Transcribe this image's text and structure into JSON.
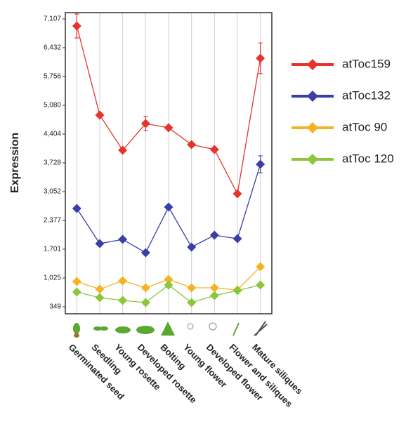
{
  "chart_data": {
    "type": "line",
    "y_label": "Expression",
    "categories": [
      "Germinated seed",
      "Seedling",
      "Young rosette",
      "Developed rosette",
      "Bolting",
      "Young flower",
      "Developed flower",
      "Flower and siliques",
      "Mature siliques"
    ],
    "series": [
      {
        "name": "atToc159",
        "color": "#e8322b",
        "values": [
          6942,
          4849,
          4025,
          4650,
          4552,
          4156,
          4041,
          3002,
          6183
        ],
        "errors": [
          280,
          null,
          null,
          165,
          null,
          null,
          null,
          null,
          360
        ]
      },
      {
        "name": "atToc132",
        "color": "#3a3fa8",
        "values": [
          2656,
          1832,
          1931,
          1618,
          2689,
          1750,
          2030,
          1947,
          3694
        ],
        "errors": [
          null,
          null,
          null,
          null,
          null,
          null,
          null,
          null,
          200
        ]
      },
      {
        "name": "atToc 90",
        "color": "#f5b324",
        "values": [
          942,
          761,
          959,
          794,
          992,
          794,
          794,
          745,
          1288
        ]
      },
      {
        "name": "atToc 120",
        "color": "#8cc63f",
        "values": [
          695,
          563,
          497,
          448,
          860,
          448,
          613,
          728,
          860
        ]
      }
    ],
    "ylim": [
      184,
      7255
    ],
    "yticks": [
      349,
      {
        "value": 1025,
        "label": "1,025"
      },
      {
        "value": 1701,
        "label": "1,701"
      },
      {
        "value": 2377,
        "label": "2,377"
      },
      {
        "value": 3052,
        "label": "3,052"
      },
      {
        "value": 3728,
        "label": "3,728"
      },
      {
        "value": 4404,
        "label": "4,404"
      },
      {
        "value": 5080,
        "label": "5,080"
      },
      {
        "value": 5756,
        "label": "5,756"
      },
      {
        "value": 6432,
        "label": "6,432"
      },
      {
        "value": 7107,
        "label": "7,107"
      }
    ],
    "grid": true,
    "legend": "right"
  }
}
